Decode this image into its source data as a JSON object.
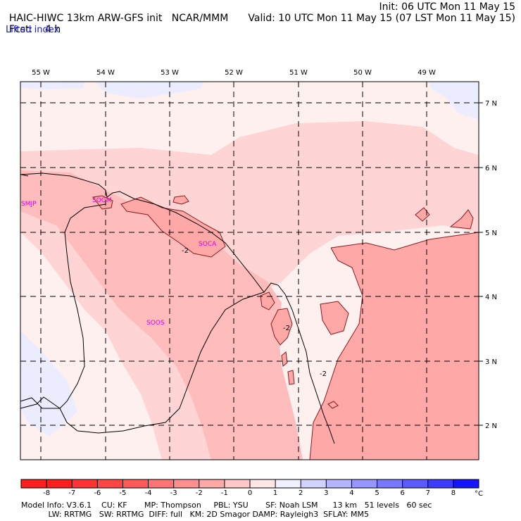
{
  "header": {
    "model_title": "HAIC-HIWC 13km ARW-GFS init",
    "org": "NCAR/MMM",
    "init": "Init: 06 UTC Mon 11 May 15",
    "fcst_label": "Fcst:",
    "fcst_value": "4 h",
    "valid": "Valid: 10 UTC Mon 11 May 15 (07 LST Mon 11 May 15)",
    "field": "Lifted index"
  },
  "map": {
    "lon_labels": [
      "55 W",
      "54 W",
      "53 W",
      "52 W",
      "51 W",
      "50 W",
      "49 W"
    ],
    "lat_labels": [
      "7 N",
      "6 N",
      "5 N",
      "4 N",
      "3 N",
      "2 N"
    ],
    "stations": [
      "SMJP",
      "SOGM",
      "SOCA",
      "SOOS"
    ],
    "contour_labels": [
      "-2",
      "-2",
      "-2"
    ]
  },
  "colorbar": {
    "ticks": [
      "-8",
      "-7",
      "-6",
      "-5",
      "-4",
      "-3",
      "-2",
      "-1",
      "0",
      "1",
      "2",
      "3",
      "4",
      "5",
      "6",
      "7",
      "8"
    ],
    "unit": "°C",
    "colors": [
      "#ff1e1e",
      "#ff3333",
      "#ff4646",
      "#ff5a5a",
      "#ff7474",
      "#ff8e8e",
      "#ffa8a8",
      "#ffc6c6",
      "#ffe6e6",
      "#f0f0ff",
      "#d2d2ff",
      "#b4b4ff",
      "#9696ff",
      "#7878ff",
      "#5a5aff",
      "#3c3cff",
      "#1414ff"
    ]
  },
  "footer": {
    "line1": "Model Info: V3.6.1    CU: KF       MP: Thompson     PBL: YSU       SF: Noah LSM      13 km   51 levels   60 sec",
    "line2": "           LW: RRTMG   SW: RRTMG  DIFF: full   KM: 2D Smagor DAMP: Rayleigh3  SFLAY: MM5"
  },
  "colors": {
    "very_light_blue": "#ebebff",
    "near_white": "#fff0f0",
    "light_pink": "#ffd4d4",
    "pink": "#ffbcbc",
    "salmon": "#ffa8a8"
  }
}
